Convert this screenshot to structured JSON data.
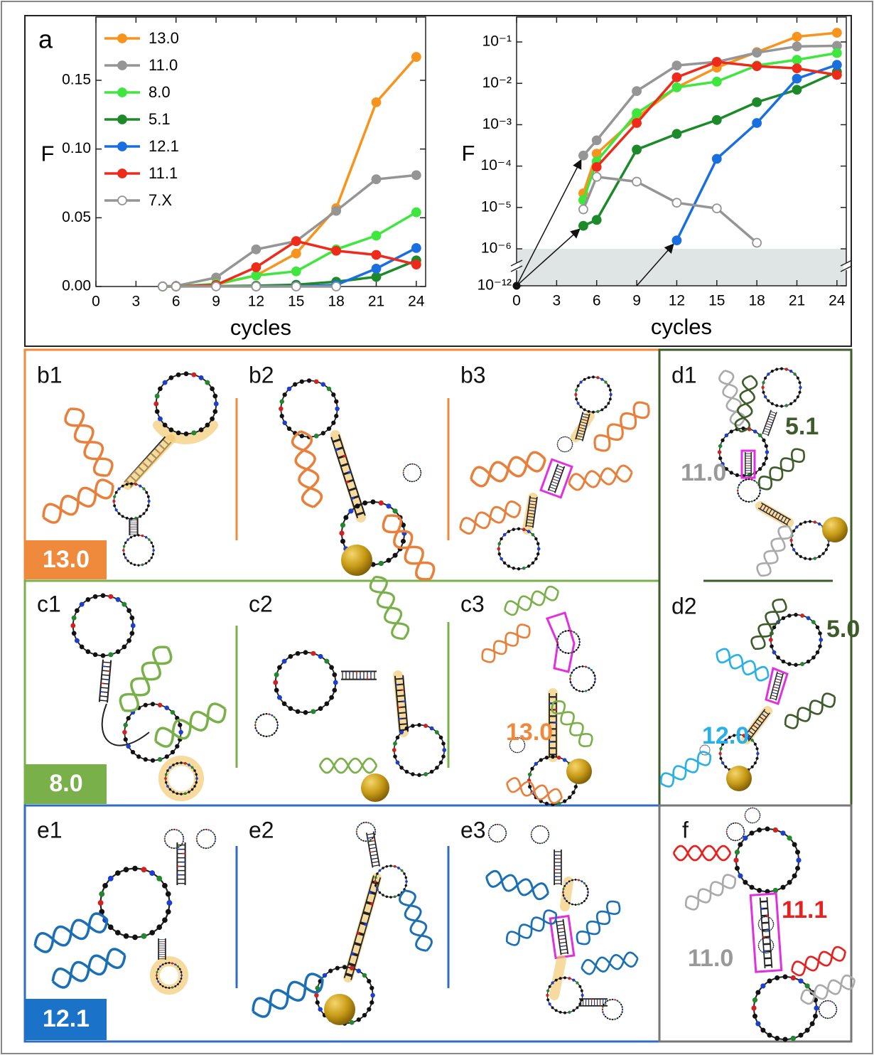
{
  "chart_data": [
    {
      "type": "line",
      "panel_label": "a",
      "xlabel": "cycles",
      "ylabel": "F",
      "yscale": "linear",
      "legend": "upper left",
      "xlim": [
        0,
        24.7
      ],
      "ylim": [
        0,
        0.196
      ],
      "xticks": [
        0,
        3,
        6,
        9,
        12,
        15,
        18,
        21,
        24
      ],
      "yticks": [
        {
          "value": 0,
          "label": "0.00"
        },
        {
          "value": 0.05,
          "label": "0.05"
        },
        {
          "value": 0.1,
          "label": "0.10"
        },
        {
          "value": 0.15,
          "label": "0.15"
        }
      ],
      "series": [
        {
          "name": "13.0",
          "color": "#f7941d",
          "marker": "filled",
          "x": [
            5,
            6,
            9,
            12,
            15,
            18,
            21,
            24
          ],
          "values": [
            2.2e-05,
            0.0002,
            0.0015,
            0.008,
            0.024,
            0.057,
            0.134,
            0.167
          ]
        },
        {
          "name": "11.0",
          "color": "#959595",
          "marker": "filled",
          "x": [
            5,
            6,
            9,
            12,
            15,
            18,
            21,
            24
          ],
          "values": [
            0.00018,
            0.00042,
            0.0065,
            0.027,
            0.033,
            0.055,
            0.078,
            0.081
          ]
        },
        {
          "name": "8.0",
          "color": "#3ee63e",
          "marker": "filled",
          "x": [
            5,
            6,
            9,
            12,
            15,
            18,
            21,
            24
          ],
          "values": [
            1.5e-05,
            0.00013,
            0.0019,
            0.008,
            0.011,
            0.027,
            0.037,
            0.054
          ]
        },
        {
          "name": "5.1",
          "color": "#1d8a2a",
          "marker": "filled",
          "x": [
            5,
            6,
            9,
            12,
            15,
            18,
            21,
            24
          ],
          "values": [
            3.6e-06,
            5e-06,
            0.00025,
            0.0006,
            0.0013,
            0.0035,
            0.007,
            0.019
          ]
        },
        {
          "name": "12.1",
          "color": "#1a6fe0",
          "marker": "filled",
          "x": [
            12,
            15,
            18,
            21,
            24
          ],
          "values": [
            1.6e-06,
            0.00015,
            0.0011,
            0.013,
            0.028
          ]
        },
        {
          "name": "11.1",
          "color": "#ee2a1b",
          "marker": "filled",
          "x": [
            6,
            9,
            12,
            15,
            18,
            21,
            24
          ],
          "values": [
            9.5e-05,
            0.0011,
            0.014,
            0.033,
            0.026,
            0.023,
            0.016
          ]
        },
        {
          "name": "7.X",
          "color": "#959595",
          "marker": "open",
          "x": [
            5,
            6,
            9,
            12,
            15,
            18
          ],
          "values": [
            9e-06,
            5.5e-05,
            4.2e-05,
            1.3e-05,
            9.5e-06,
            1.4e-06
          ]
        }
      ]
    },
    {
      "type": "line",
      "xlabel": "cycles",
      "ylabel": "F",
      "yscale": "log",
      "axis_break": [
        1e-12,
        1e-06
      ],
      "shaded_region": [
        1e-12,
        1e-06
      ],
      "xlim": [
        0,
        24.7
      ],
      "ylim": [
        1e-12,
        0.4
      ],
      "xticks": [
        0,
        3,
        6,
        9,
        12,
        15,
        18,
        21,
        24
      ],
      "yticks": [
        {
          "value": 1e-12,
          "label": "10⁻¹²"
        },
        {
          "value": 1e-06,
          "label": "10⁻⁶"
        },
        {
          "value": 1e-05,
          "label": "10⁻⁵"
        },
        {
          "value": 0.0001,
          "label": "10⁻⁴"
        },
        {
          "value": 0.001,
          "label": "10⁻³"
        },
        {
          "value": 0.01,
          "label": "10⁻²"
        },
        {
          "value": 0.1,
          "label": "10⁻¹"
        }
      ],
      "origin_point": {
        "x": 0,
        "y": 1e-12
      },
      "arrows": [
        {
          "from": [
            0,
            1e-12
          ],
          "to": [
            5,
            0.00018
          ]
        },
        {
          "from": [
            0,
            1e-12
          ],
          "to": [
            5,
            3.6e-06
          ]
        },
        {
          "from": [
            9,
            1e-12
          ],
          "to": [
            12,
            1.6e-06
          ]
        }
      ],
      "series": [
        {
          "name": "13.0",
          "color": "#f7941d",
          "marker": "filled",
          "x": [
            5,
            6,
            9,
            12,
            15,
            18,
            21,
            24
          ],
          "values": [
            2.2e-05,
            0.0002,
            0.0015,
            0.008,
            0.024,
            0.057,
            0.134,
            0.167
          ]
        },
        {
          "name": "11.0",
          "color": "#959595",
          "marker": "filled",
          "x": [
            5,
            6,
            9,
            12,
            15,
            18,
            21,
            24
          ],
          "values": [
            0.00018,
            0.00042,
            0.0065,
            0.027,
            0.033,
            0.055,
            0.078,
            0.081
          ]
        },
        {
          "name": "8.0",
          "color": "#3ee63e",
          "marker": "filled",
          "x": [
            5,
            6,
            9,
            12,
            15,
            18,
            21,
            24
          ],
          "values": [
            1.5e-05,
            0.00013,
            0.0019,
            0.008,
            0.011,
            0.027,
            0.037,
            0.054
          ]
        },
        {
          "name": "5.1",
          "color": "#1d8a2a",
          "marker": "filled",
          "x": [
            5,
            6,
            9,
            12,
            15,
            18,
            21,
            24
          ],
          "values": [
            3.6e-06,
            5e-06,
            0.00025,
            0.0006,
            0.0013,
            0.0035,
            0.007,
            0.019
          ]
        },
        {
          "name": "12.1",
          "color": "#1a6fe0",
          "marker": "filled",
          "x": [
            12,
            15,
            18,
            21,
            24
          ],
          "values": [
            1.6e-06,
            0.00015,
            0.0011,
            0.013,
            0.028
          ]
        },
        {
          "name": "11.1",
          "color": "#ee2a1b",
          "marker": "filled",
          "x": [
            6,
            9,
            12,
            15,
            18,
            21,
            24
          ],
          "values": [
            9.5e-05,
            0.0011,
            0.014,
            0.033,
            0.026,
            0.023,
            0.016
          ]
        },
        {
          "name": "7.X",
          "color": "#959595",
          "marker": "open",
          "x": [
            5,
            6,
            9,
            12,
            15,
            18
          ],
          "values": [
            9e-06,
            5.5e-05,
            4.2e-05,
            1.3e-05,
            9.5e-06,
            1.4e-06
          ]
        }
      ]
    }
  ],
  "panels": {
    "b": {
      "labels": [
        "b1",
        "b2",
        "b3"
      ],
      "badge": "13.0"
    },
    "c": {
      "labels": [
        "c1",
        "c2",
        "c3"
      ],
      "badge": "8.0",
      "annotation": "13.0"
    },
    "d": {
      "labels": [
        "d1",
        "d2"
      ],
      "annotations": [
        "5.1",
        "11.0",
        "5.0",
        "12.0"
      ]
    },
    "e": {
      "labels": [
        "e1",
        "e2",
        "e3"
      ],
      "badge": "12.1"
    },
    "f": {
      "label": "f",
      "annotations": [
        "11.1",
        "11.0"
      ]
    }
  }
}
